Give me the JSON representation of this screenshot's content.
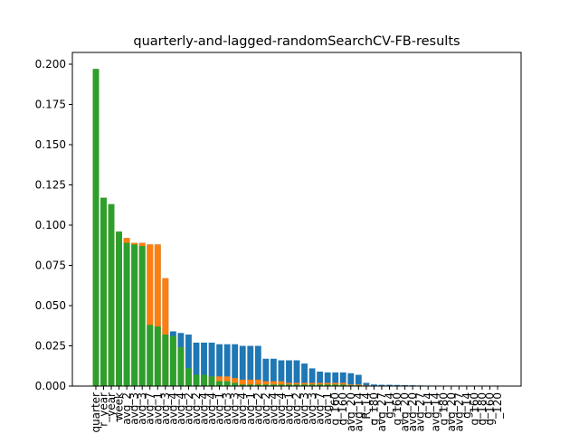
{
  "chart_data": {
    "type": "bar",
    "title": "quarterly-and-lagged-randomSearchCV-FB-results",
    "categories": [
      "quarter",
      "r_year",
      "_year",
      "week",
      "avg_2",
      "avg_3",
      "avg_3",
      "avg_7",
      "avg_1",
      "avg_3",
      "avg_4",
      "avg_4",
      "avg_2",
      "avg_2",
      "avg_4",
      "avg_4",
      "avg_1",
      "avg_3",
      "avg_3",
      "avg_4",
      "avg_1",
      "avg_2",
      "avg_2",
      "avg_4",
      "avg_4",
      "avg_1",
      "avg_2",
      "avg_3",
      "avg_3",
      "avg_7",
      "avg_1",
      "g_160",
      "g_160",
      "avg_20",
      "avg_14",
      "_R_14",
      "g_180",
      "avg_27",
      "g_14",
      "g_160",
      "avg_20",
      "avg_20",
      "avg_27",
      "g_14",
      "avg_14",
      "g_180",
      "avg_20",
      "avg_27",
      "g_14",
      "g_160",
      "g_180",
      "g_160",
      "_120"
    ],
    "series": [
      {
        "color": "#1f77b4",
        "values": [
          0.197,
          0.117,
          0.113,
          0.096,
          0.092,
          0.089,
          0.089,
          0.088,
          0.088,
          0.067,
          0.034,
          0.033,
          0.032,
          0.027,
          0.027,
          0.027,
          0.026,
          0.026,
          0.026,
          0.025,
          0.025,
          0.025,
          0.017,
          0.017,
          0.016,
          0.016,
          0.016,
          0.014,
          0.011,
          0.009,
          0.0085,
          0.0085,
          0.0085,
          0.008,
          0.007,
          0.002,
          0.001,
          0.0008,
          0.0008,
          0.0007,
          0.0006,
          0.0005,
          0.0004,
          0.0003,
          0.0003,
          0.0002,
          0.0002,
          0.0001,
          0.0001,
          0.0001,
          0.0001,
          0.0001,
          0.0001
        ]
      },
      {
        "color": "#ff7f0e",
        "values": [
          0.197,
          0.117,
          0.113,
          0.096,
          0.092,
          0.089,
          0.089,
          0.088,
          0.088,
          0.067,
          0.031,
          0.024,
          0.011,
          0.007,
          0.007,
          0.006,
          0.006,
          0.006,
          0.005,
          0.004,
          0.004,
          0.004,
          0.003,
          0.003,
          0.003,
          0.002,
          0.002,
          0.002,
          0.002,
          0.002,
          0.002,
          0.002,
          0.002,
          0.001,
          0.001,
          0.0005,
          0.0003,
          0.0002,
          0.0002,
          0.0002,
          0.0001,
          0.0001,
          0.0001,
          0.0001,
          0.0001,
          0.0001,
          0.0001,
          0.0001,
          0.0001,
          0.0001,
          0.0001,
          0.0001,
          0.0001
        ]
      },
      {
        "color": "#2ca02c",
        "values": [
          0.197,
          0.117,
          0.113,
          0.096,
          0.089,
          0.088,
          0.087,
          0.038,
          0.037,
          0.032,
          0.031,
          0.024,
          0.011,
          0.007,
          0.007,
          0.006,
          0.003,
          0.003,
          0.002,
          0.001,
          0.001,
          0.001,
          0.001,
          0.001,
          0.001,
          0.001,
          0.001,
          0.001,
          0.001,
          0.001,
          0.001,
          0.001,
          0.001,
          0.0005,
          0.0005,
          0.0003,
          0.0002,
          0.0001,
          0.0001,
          0.0001,
          0.0001,
          0.0001,
          0.0001,
          0.0001,
          0.0001,
          0.0001,
          0.0001,
          0.0001,
          0.0001,
          0.0001,
          0.0001,
          0.0001,
          0.0001
        ]
      }
    ],
    "ylim": [
      0,
      0.2073
    ],
    "yticks": [
      {
        "value": 0,
        "label": "0.000"
      },
      {
        "value": 0.025,
        "label": "0.025"
      },
      {
        "value": 0.05,
        "label": "0.050"
      },
      {
        "value": 0.075,
        "label": "0.075"
      },
      {
        "value": 0.1,
        "label": "0.100"
      },
      {
        "value": 0.125,
        "label": "0.125"
      },
      {
        "value": 0.15,
        "label": "0.150"
      },
      {
        "value": 0.175,
        "label": "0.175"
      },
      {
        "value": 0.2,
        "label": "0.200"
      }
    ]
  }
}
